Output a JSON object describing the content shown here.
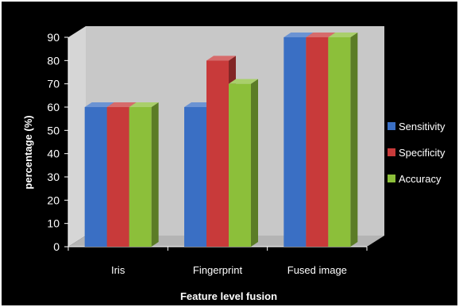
{
  "chart_data": {
    "type": "bar",
    "title": "",
    "xlabel": "Feature level fusion",
    "ylabel": "percentage (%)",
    "ylim": [
      0,
      90
    ],
    "yticks": [
      0,
      10,
      20,
      30,
      40,
      50,
      60,
      70,
      80,
      90
    ],
    "grid": false,
    "legend_position": "right",
    "categories": [
      "Iris",
      "Fingerprint",
      "Fused image"
    ],
    "series": [
      {
        "name": "Sensitivity",
        "color": "#3a6fc4",
        "values": [
          60,
          60,
          90
        ]
      },
      {
        "name": "Specificity",
        "color": "#c83a3a",
        "values": [
          60,
          80,
          90
        ]
      },
      {
        "name": "Accuracy",
        "color": "#8cbf3a",
        "values": [
          60,
          70,
          90
        ]
      }
    ]
  }
}
